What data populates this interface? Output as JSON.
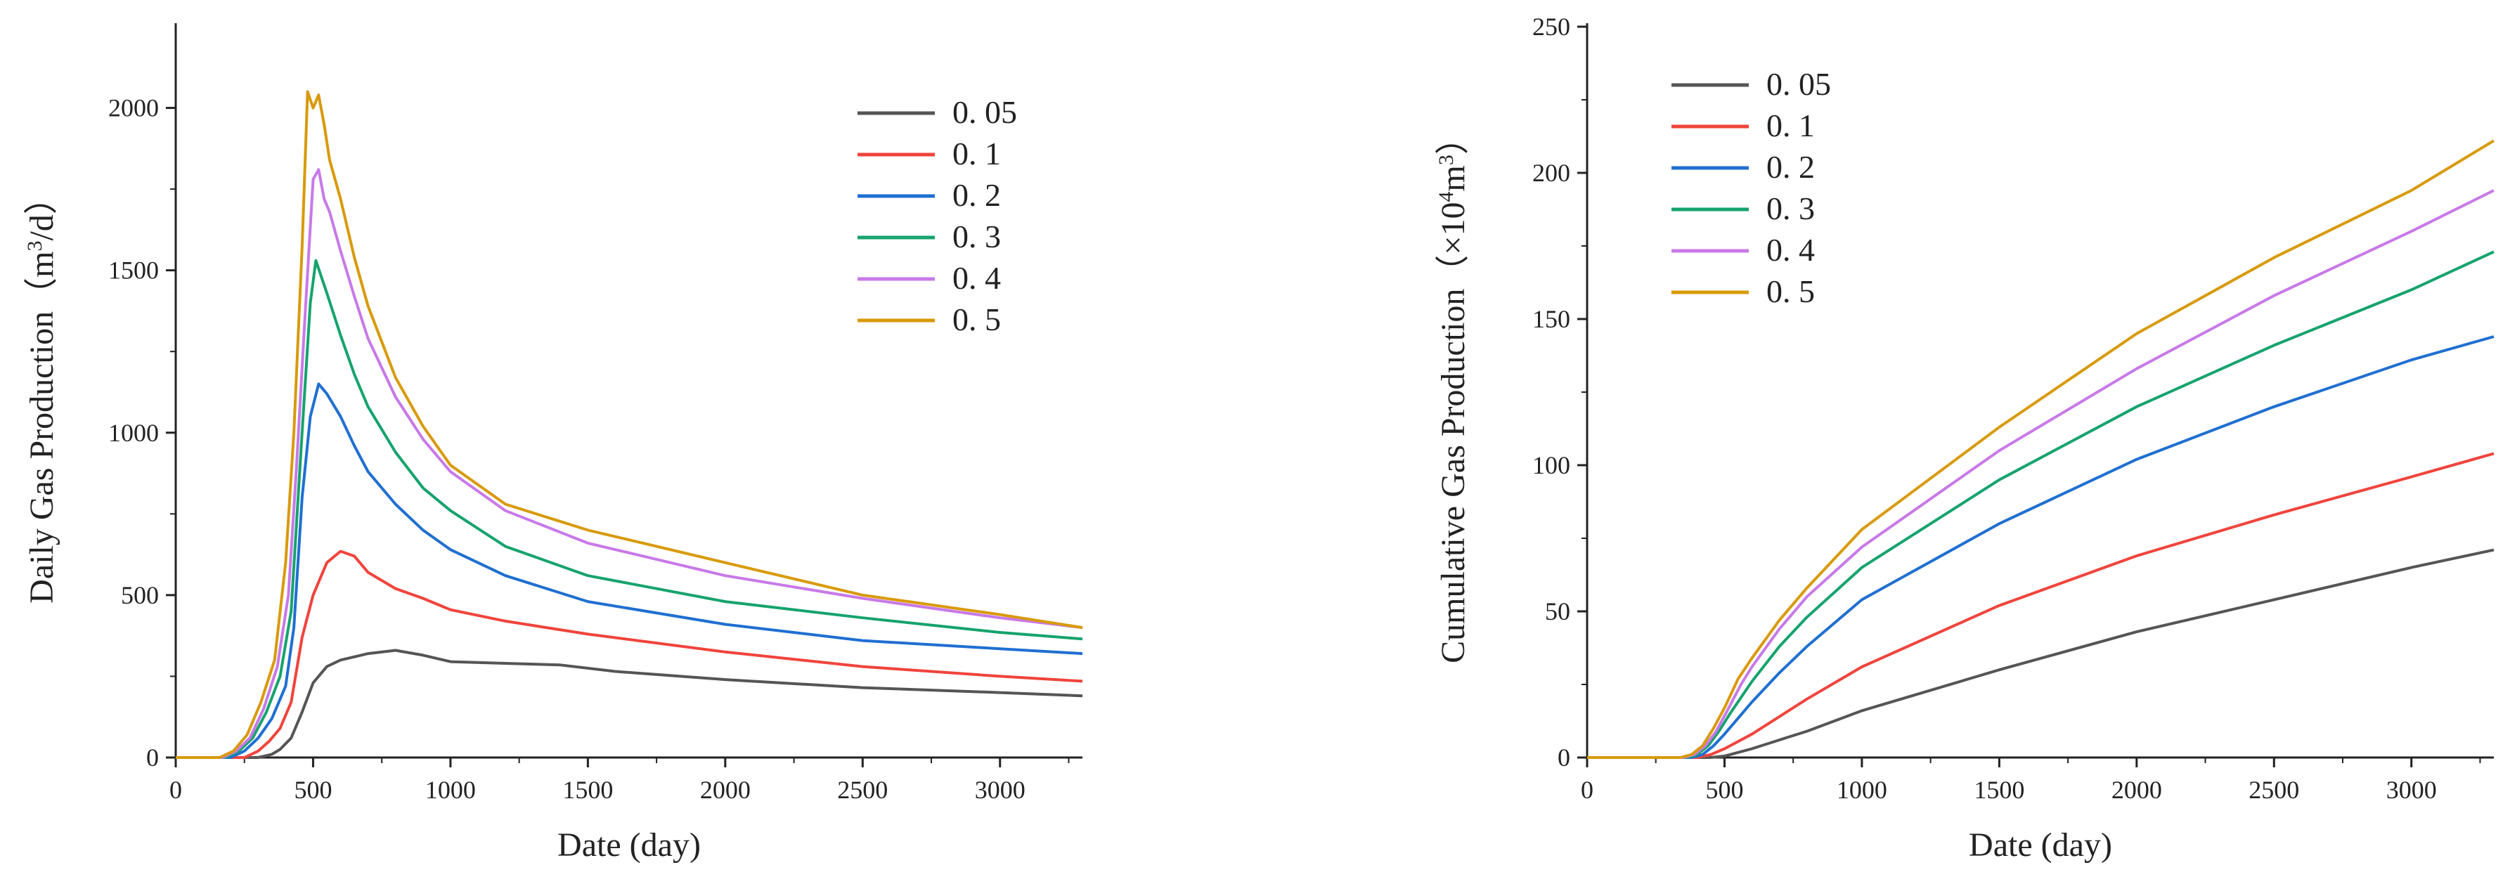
{
  "chart_data": [
    {
      "type": "line",
      "title": "",
      "xlabel": "Date (day)",
      "ylabel": "Daily Gas Production（m³/d）",
      "ylabel_parts": [
        "Daily Gas Production（m",
        "3",
        "/d）"
      ],
      "xlim": [
        0,
        3300
      ],
      "ylim": [
        0,
        2250
      ],
      "xticks": [
        0,
        500,
        1000,
        1500,
        2000,
        2500,
        3000
      ],
      "yticks": [
        0,
        500,
        1000,
        1500,
        2000
      ],
      "legend_position": "top-right",
      "series": [
        {
          "name": "0. 05",
          "color": "#555555",
          "x": [
            0,
            300,
            350,
            380,
            420,
            460,
            500,
            550,
            600,
            700,
            800,
            900,
            1000,
            1200,
            1400,
            1600,
            2000,
            2500,
            3000,
            3300
          ],
          "y": [
            0,
            0,
            10,
            25,
            60,
            140,
            230,
            280,
            300,
            320,
            330,
            315,
            295,
            290,
            285,
            265,
            240,
            215,
            200,
            190
          ]
        },
        {
          "name": "0. 1",
          "color": "#f0443c",
          "x": [
            0,
            250,
            300,
            340,
            380,
            420,
            460,
            500,
            550,
            600,
            650,
            700,
            800,
            900,
            1000,
            1200,
            1500,
            2000,
            2500,
            3000,
            3300
          ],
          "y": [
            0,
            0,
            20,
            50,
            90,
            170,
            370,
            500,
            600,
            635,
            620,
            570,
            520,
            490,
            455,
            420,
            380,
            325,
            280,
            250,
            235
          ]
        },
        {
          "name": "0. 2",
          "color": "#1f6fd1",
          "x": [
            0,
            200,
            250,
            300,
            350,
            400,
            430,
            460,
            490,
            520,
            550,
            600,
            650,
            700,
            800,
            900,
            1000,
            1200,
            1500,
            2000,
            2500,
            3000,
            3300
          ],
          "y": [
            0,
            0,
            20,
            60,
            120,
            220,
            400,
            800,
            1050,
            1150,
            1120,
            1050,
            960,
            880,
            780,
            700,
            640,
            560,
            480,
            410,
            360,
            335,
            320
          ]
        },
        {
          "name": "0. 3",
          "color": "#16a36d",
          "x": [
            0,
            180,
            230,
            280,
            330,
            380,
            420,
            460,
            490,
            510,
            530,
            550,
            600,
            650,
            700,
            800,
            900,
            1000,
            1200,
            1500,
            2000,
            2500,
            3000,
            3300
          ],
          "y": [
            0,
            0,
            20,
            60,
            140,
            250,
            450,
            1000,
            1400,
            1530,
            1480,
            1430,
            1300,
            1180,
            1080,
            940,
            830,
            760,
            650,
            560,
            480,
            430,
            385,
            365
          ]
        },
        {
          "name": "0. 4",
          "color": "#c879e8",
          "x": [
            0,
            170,
            220,
            270,
            320,
            370,
            410,
            440,
            470,
            500,
            520,
            540,
            560,
            600,
            650,
            700,
            800,
            900,
            1000,
            1200,
            1500,
            2000,
            2500,
            3000,
            3300
          ],
          "y": [
            0,
            0,
            20,
            60,
            150,
            280,
            500,
            900,
            1350,
            1780,
            1810,
            1720,
            1680,
            1560,
            1420,
            1290,
            1110,
            980,
            880,
            760,
            660,
            560,
            490,
            430,
            400
          ]
        },
        {
          "name": "0. 5",
          "color": "#d89a0a",
          "x": [
            0,
            160,
            210,
            260,
            310,
            360,
            400,
            430,
            460,
            480,
            500,
            520,
            540,
            560,
            600,
            650,
            700,
            800,
            900,
            1000,
            1200,
            1500,
            2000,
            2500,
            3000,
            3300
          ],
          "y": [
            0,
            0,
            20,
            70,
            170,
            300,
            600,
            1000,
            1570,
            2050,
            2000,
            2040,
            1950,
            1840,
            1720,
            1540,
            1390,
            1170,
            1020,
            900,
            780,
            700,
            600,
            500,
            440,
            400
          ]
        }
      ]
    },
    {
      "type": "line",
      "title": "",
      "xlabel": "Date (day)",
      "ylabel": "Cumulative Gas Production（×10⁴m³）",
      "ylabel_parts": [
        "Cumulative Gas Production（×10",
        "4",
        "m",
        "3",
        "）"
      ],
      "xlim": [
        0,
        3300
      ],
      "ylim": [
        0,
        250
      ],
      "xticks": [
        0,
        500,
        1000,
        1500,
        2000,
        2500,
        3000
      ],
      "yticks": [
        0,
        50,
        100,
        150,
        200,
        250
      ],
      "legend_position": "top-left",
      "series": [
        {
          "name": "0. 05",
          "color": "#555555",
          "x": [
            0,
            450,
            500,
            600,
            700,
            800,
            1000,
            1500,
            2000,
            2500,
            3000,
            3300
          ],
          "y": [
            0,
            0,
            0.5,
            3,
            6,
            9,
            16,
            30,
            43,
            54,
            65,
            71
          ]
        },
        {
          "name": "0. 1",
          "color": "#f0443c",
          "x": [
            0,
            400,
            450,
            500,
            600,
            700,
            800,
            1000,
            1500,
            2000,
            2500,
            3000,
            3300
          ],
          "y": [
            0,
            0,
            1,
            3,
            8,
            14,
            20,
            31,
            52,
            69,
            83,
            96,
            104
          ]
        },
        {
          "name": "0. 2",
          "color": "#1f6fd1",
          "x": [
            0,
            380,
            420,
            460,
            500,
            600,
            700,
            800,
            1000,
            1500,
            2000,
            2500,
            3000,
            3300
          ],
          "y": [
            0,
            0,
            1,
            4,
            8,
            19,
            29,
            38,
            54,
            80,
            102,
            120,
            136,
            144
          ]
        },
        {
          "name": "0. 3",
          "color": "#16a36d",
          "x": [
            0,
            360,
            400,
            440,
            480,
            520,
            600,
            700,
            800,
            1000,
            1500,
            2000,
            2500,
            3000,
            3300
          ],
          "y": [
            0,
            0,
            1,
            4,
            9,
            15,
            26,
            38,
            48,
            65,
            95,
            120,
            141,
            160,
            173
          ]
        },
        {
          "name": "0. 4",
          "color": "#c879e8",
          "x": [
            0,
            350,
            390,
            430,
            470,
            510,
            560,
            600,
            700,
            800,
            1000,
            1500,
            2000,
            2500,
            3000,
            3300
          ],
          "y": [
            0,
            0,
            1,
            4,
            9,
            16,
            25,
            31,
            44,
            55,
            72,
            105,
            133,
            158,
            180,
            194
          ]
        },
        {
          "name": "0. 5",
          "color": "#d89a0a",
          "x": [
            0,
            340,
            380,
            420,
            460,
            500,
            550,
            600,
            700,
            800,
            1000,
            1500,
            2000,
            2500,
            3000,
            3300
          ],
          "y": [
            0,
            0,
            1,
            4,
            10,
            17,
            27,
            34,
            47,
            58,
            78,
            113,
            145,
            171,
            194,
            211
          ]
        }
      ]
    }
  ]
}
